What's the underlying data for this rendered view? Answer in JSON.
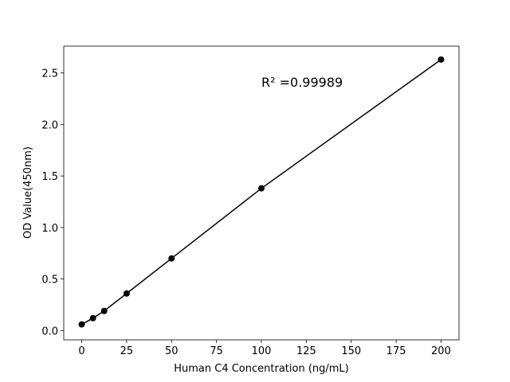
{
  "chart_data": {
    "type": "line",
    "xlabel": "Human C4 Concentration (ng/mL)",
    "ylabel": "OD Value(450nm)",
    "annotation": "R² =0.99989",
    "x": [
      0,
      6.25,
      12.5,
      25,
      50,
      100,
      200
    ],
    "series": [
      {
        "color": "#000000",
        "values": [
          0.06,
          0.12,
          0.19,
          0.36,
          0.7,
          1.38,
          2.63
        ]
      }
    ],
    "xlim": [
      -10,
      210
    ],
    "xticks": [
      0,
      25,
      50,
      75,
      100,
      125,
      150,
      175,
      200
    ],
    "ylim": [
      -0.09,
      2.76
    ],
    "yticks": [
      {
        "value": 0,
        "label": "0.0"
      },
      0.5,
      {
        "value": 1,
        "label": "1.0"
      },
      1.5,
      {
        "value": 2,
        "label": "2.0"
      },
      2.5
    ],
    "grid": false
  }
}
